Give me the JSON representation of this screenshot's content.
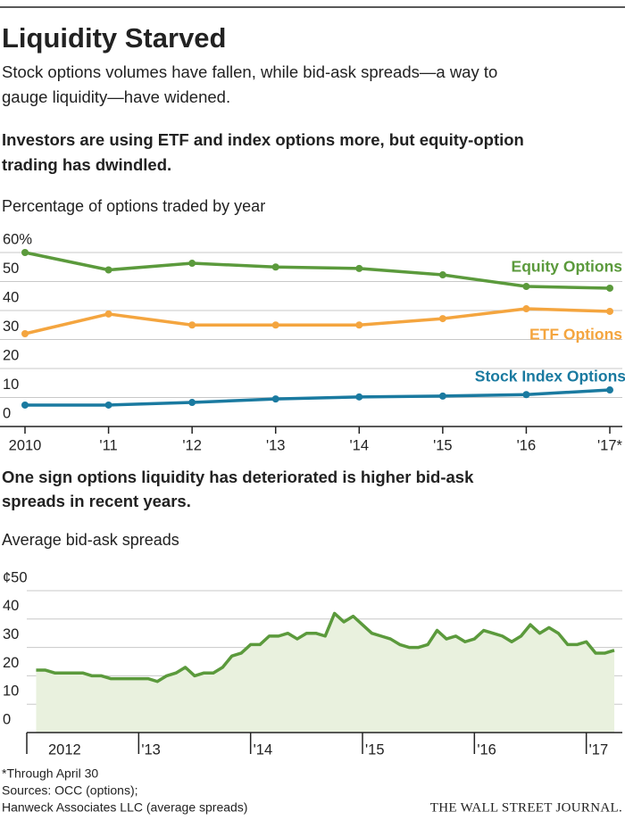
{
  "header": {
    "title": "Liquidity Starved",
    "subtitle": [
      "Stock options volumes have fallen, while bid-ask spreads—a way to",
      "gauge liquidity—have widened."
    ]
  },
  "chart_data": [
    {
      "type": "line",
      "heading": [
        "Investors are using ETF and index options more, but equity-option",
        "trading has dwindled."
      ],
      "title": "Percentage of options traded by year",
      "categories": [
        "2010",
        "'11",
        "'12",
        "'13",
        "'14",
        "'15",
        "'16",
        "'17*"
      ],
      "ylim": [
        0,
        60
      ],
      "yticks": [
        0,
        10,
        20,
        30,
        40,
        50,
        {
          "value": 60,
          "label": "60%"
        }
      ],
      "grid": true,
      "series": [
        {
          "name": "Equity Options",
          "color": "#5b9a3c",
          "values": [
            60,
            54,
            56.3,
            55,
            54.5,
            52.3,
            48.3,
            47.7
          ]
        },
        {
          "name": "ETF Options",
          "color": "#f4a53f",
          "values": [
            32,
            38.8,
            35,
            35,
            35,
            37.2,
            40.6,
            39.7
          ]
        },
        {
          "name": "Stock Index Options",
          "color": "#1a7aa0",
          "values": [
            7.4,
            7.4,
            8.3,
            9.5,
            10.2,
            10.5,
            11,
            12.6
          ]
        }
      ]
    },
    {
      "type": "area",
      "heading": [
        "One sign options liquidity has deteriorated is higher bid-ask",
        "spreads in recent years."
      ],
      "title": "Average bid-ask spreads",
      "color": "#5b9a3c",
      "fill": "#e9f1de",
      "x": [
        "2012-02",
        "2012-03",
        "2012-04",
        "2012-05",
        "2012-06",
        "2012-07",
        "2012-08",
        "2012-09",
        "2012-10",
        "2012-11",
        "2012-12",
        "2013-01",
        "2013-02",
        "2013-03",
        "2013-04",
        "2013-05",
        "2013-06",
        "2013-07",
        "2013-08",
        "2013-09",
        "2013-10",
        "2013-11",
        "2013-12",
        "2014-01",
        "2014-02",
        "2014-03",
        "2014-04",
        "2014-05",
        "2014-06",
        "2014-07",
        "2014-08",
        "2014-09",
        "2014-10",
        "2014-11",
        "2014-12",
        "2015-01",
        "2015-02",
        "2015-03",
        "2015-04",
        "2015-05",
        "2015-06",
        "2015-07",
        "2015-08",
        "2015-09",
        "2015-10",
        "2015-11",
        "2015-12",
        "2016-01",
        "2016-02",
        "2016-03",
        "2016-04",
        "2016-05",
        "2016-06",
        "2016-07",
        "2016-08",
        "2016-09",
        "2016-10",
        "2016-11",
        "2016-12",
        "2017-01",
        "2017-02",
        "2017-03",
        "2017-04"
      ],
      "values": [
        22,
        22,
        21,
        21,
        21,
        21,
        20,
        20,
        19,
        19,
        19,
        19,
        19,
        18,
        20,
        21,
        23,
        20,
        21,
        21,
        23,
        27,
        28,
        31,
        31,
        34,
        34,
        35,
        33,
        35,
        35,
        34,
        42,
        39,
        41,
        38,
        35,
        34,
        33,
        31,
        30,
        30,
        31,
        36,
        33,
        34,
        32,
        33,
        36,
        35,
        34,
        32,
        34,
        38,
        35,
        37,
        35,
        31,
        31,
        32,
        28,
        28,
        29
      ],
      "xlim": [
        "2012-01",
        "2017-04"
      ],
      "xticks": [
        {
          "value": "2012-01",
          "label": "2012"
        },
        {
          "value": "2013-01",
          "label": "'13"
        },
        {
          "value": "2014-01",
          "label": "'14"
        },
        {
          "value": "2015-01",
          "label": "'15"
        },
        {
          "value": "2016-01",
          "label": "'16"
        },
        {
          "value": "2017-01",
          "label": "'17"
        }
      ],
      "ylim": [
        0,
        50
      ],
      "yticks": [
        0,
        10,
        20,
        30,
        40,
        {
          "value": 50,
          "label": "¢50"
        }
      ],
      "grid": true
    }
  ],
  "footer": {
    "note": "*Through April 30",
    "sources": [
      "Sources: OCC (options);",
      "Hanweck Associates LLC (average spreads)"
    ],
    "credit": "THE WALL STREET JOURNAL."
  }
}
